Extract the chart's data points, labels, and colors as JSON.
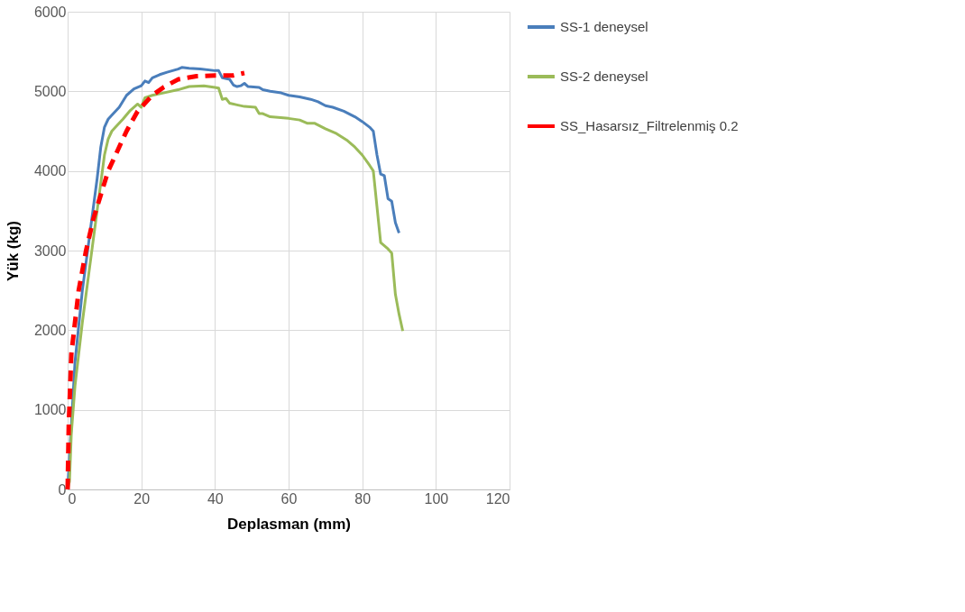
{
  "chart_data": {
    "type": "line",
    "xlabel": "Deplasman (mm)",
    "ylabel": "Yük (kg)",
    "xlim": [
      0,
      120
    ],
    "xticks": [
      0,
      20,
      40,
      60,
      80,
      100,
      120
    ],
    "ylim": [
      0,
      6000
    ],
    "yticks": [
      0,
      1000,
      2000,
      3000,
      4000,
      5000,
      6000
    ],
    "grid": true,
    "legend": "right",
    "marker": "none",
    "series": [
      {
        "name": "SS-1 deneysel",
        "color": "#4a7ebb",
        "line_style": "solid",
        "x": [
          0,
          1,
          2,
          4,
          6,
          8,
          9,
          10,
          11,
          12,
          14,
          16,
          18,
          20,
          21,
          22,
          23,
          25,
          27,
          30,
          31,
          33,
          36,
          40,
          41,
          42,
          44,
          45,
          46,
          47,
          48,
          49,
          52,
          53,
          55,
          58,
          60,
          63,
          66,
          68,
          70,
          72,
          75,
          78,
          80,
          82,
          83,
          84,
          85,
          86,
          87,
          88,
          89,
          90
        ],
        "values": [
          0,
          800,
          1600,
          2500,
          3200,
          3900,
          4300,
          4550,
          4650,
          4700,
          4800,
          4950,
          5030,
          5070,
          5130,
          5110,
          5170,
          5210,
          5240,
          5280,
          5300,
          5290,
          5280,
          5260,
          5260,
          5170,
          5150,
          5080,
          5060,
          5070,
          5100,
          5060,
          5050,
          5020,
          5000,
          4980,
          4950,
          4930,
          4900,
          4870,
          4820,
          4800,
          4750,
          4680,
          4620,
          4550,
          4500,
          4200,
          3960,
          3940,
          3650,
          3620,
          3350,
          3220
        ]
      },
      {
        "name": "SS-2 deneysel",
        "color": "#9bbb59",
        "line_style": "solid",
        "x": [
          0,
          0.5,
          1,
          2,
          4,
          6,
          8,
          10,
          11,
          12,
          13,
          15,
          17,
          19,
          20,
          21,
          23,
          26,
          30,
          33,
          37,
          40,
          41,
          42,
          43,
          44,
          46,
          48,
          51,
          52,
          53,
          55,
          60,
          63,
          65,
          67,
          70,
          73,
          76,
          78,
          80,
          82,
          83,
          84,
          85,
          87,
          88,
          89,
          90,
          91
        ],
        "values": [
          0,
          100,
          700,
          1300,
          2100,
          2800,
          3500,
          4200,
          4400,
          4500,
          4550,
          4650,
          4760,
          4840,
          4800,
          4920,
          4950,
          4980,
          5020,
          5060,
          5070,
          5050,
          5040,
          4900,
          4910,
          4850,
          4830,
          4810,
          4800,
          4720,
          4720,
          4680,
          4660,
          4640,
          4600,
          4600,
          4530,
          4470,
          4380,
          4300,
          4200,
          4070,
          4000,
          3550,
          3100,
          3020,
          2970,
          2450,
          2200,
          1990
        ]
      },
      {
        "name": "SS_Hasarsız_Filtrelenmiş 0.2",
        "color": "#ff0000",
        "line_style": "dashed",
        "x": [
          0,
          0.3,
          1,
          3,
          5,
          7,
          9,
          11,
          13,
          16,
          19,
          23,
          26,
          30,
          35,
          40,
          45,
          48
        ],
        "values": [
          0,
          800,
          1700,
          2500,
          3000,
          3400,
          3700,
          4000,
          4200,
          4500,
          4750,
          4950,
          5050,
          5150,
          5190,
          5200,
          5200,
          5230
        ]
      }
    ]
  }
}
